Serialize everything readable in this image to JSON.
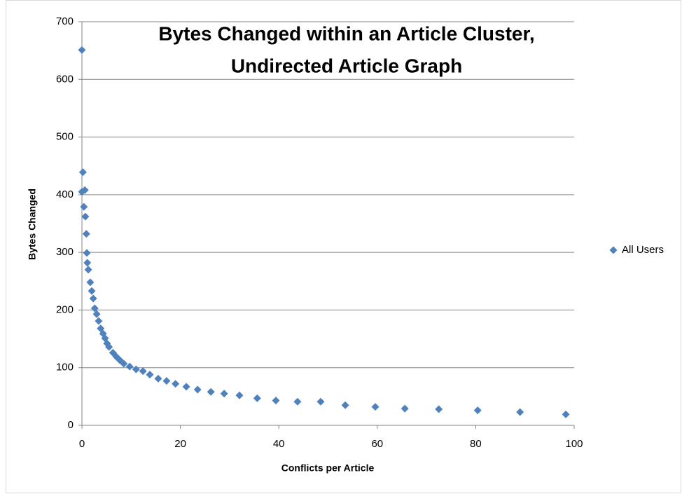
{
  "chart_data": {
    "type": "scatter",
    "title": [
      "Bytes Changed within an Article Cluster,",
      "Undirected Article Graph"
    ],
    "xlabel": "Conflicts per Article",
    "ylabel": "Bytes Changed",
    "series": [
      {
        "name": "All Users",
        "color": "#4f81bd",
        "x": [
          0,
          0.2,
          0,
          0.6,
          0.4,
          0.7,
          0.9,
          1.0,
          1.1,
          1.3,
          1.7,
          2.0,
          2.3,
          2.6,
          3.0,
          3.4,
          3.8,
          4.3,
          4.7,
          5.1,
          5.5,
          6.3,
          7.0,
          7.7,
          8.5,
          9.7,
          11,
          12.4,
          13.8,
          15.5,
          17.2,
          19,
          21.2,
          23.5,
          26.2,
          28.9,
          32,
          35.6,
          39.4,
          43.8,
          48.5,
          53.5,
          59.6,
          65.6,
          72.5,
          80.4,
          89,
          98.3
        ],
        "values": [
          651,
          439,
          405,
          408,
          379,
          362,
          332,
          299,
          282,
          270,
          248,
          233,
          220,
          203,
          193,
          181,
          168,
          159,
          151,
          142,
          136,
          126,
          119,
          113,
          107,
          102,
          97,
          94,
          88,
          81,
          77,
          72,
          67,
          62,
          58,
          55,
          52,
          47,
          43,
          41,
          41,
          35,
          32,
          29,
          28,
          26,
          23,
          19
        ]
      }
    ],
    "xlim": [
      0,
      100
    ],
    "xticks": [
      0,
      20,
      40,
      60,
      80,
      100
    ],
    "ylim": [
      0,
      700
    ],
    "yticks": [
      0,
      100,
      200,
      300,
      400,
      500,
      600,
      700
    ],
    "grid": true,
    "legend": "right"
  }
}
